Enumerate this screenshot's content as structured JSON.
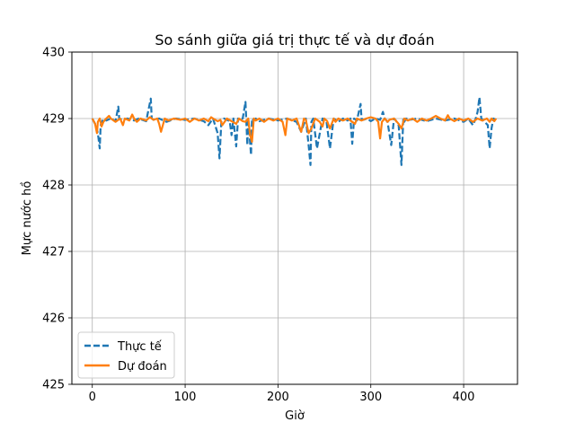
{
  "chart_data": {
    "type": "line",
    "title": "So sánh giữa giá trị thực tế và dự đoán",
    "xlabel": "Giờ",
    "ylabel": "Mực nước hồ",
    "xlim": [
      -22,
      458
    ],
    "ylim": [
      425,
      430
    ],
    "x_ticks": [
      0,
      100,
      200,
      300,
      400
    ],
    "y_ticks": [
      425,
      426,
      427,
      428,
      429,
      430
    ],
    "grid": true,
    "legend_position": "lower-left",
    "series": [
      {
        "name": "Thực tế",
        "color": "#1f77b4",
        "linestyle": "dashed",
        "x": [
          0,
          3,
          6,
          8,
          9,
          12,
          15,
          20,
          25,
          28,
          29,
          32,
          38,
          45,
          50,
          58,
          63,
          64,
          66,
          72,
          80,
          90,
          100,
          110,
          120,
          125,
          130,
          135,
          137,
          139,
          142,
          148,
          150,
          152,
          155,
          157,
          159,
          162,
          165,
          167,
          168,
          171,
          172,
          174,
          176,
          180,
          190,
          200,
          210,
          220,
          225,
          230,
          233,
          235,
          236,
          238,
          242,
          248,
          252,
          256,
          260,
          265,
          270,
          275,
          278,
          280,
          282,
          285,
          289,
          290,
          292,
          296,
          300,
          305,
          310,
          313,
          315,
          318,
          322,
          325,
          327,
          330,
          333,
          335,
          336,
          338,
          342,
          350,
          360,
          370,
          380,
          390,
          400,
          405,
          410,
          413,
          415,
          417,
          419,
          422,
          426,
          428,
          430,
          432,
          435
        ],
        "values": [
          429.0,
          428.92,
          428.78,
          428.55,
          428.9,
          429.0,
          428.97,
          429.0,
          428.96,
          429.18,
          429.0,
          428.98,
          429.0,
          428.97,
          429.0,
          428.96,
          429.3,
          429.0,
          428.98,
          429.0,
          428.95,
          429.0,
          428.98,
          429.0,
          428.96,
          428.9,
          429.0,
          428.78,
          428.4,
          428.95,
          429.0,
          428.96,
          428.75,
          429.0,
          428.58,
          429.0,
          428.97,
          429.0,
          429.25,
          428.6,
          429.0,
          428.45,
          429.0,
          428.97,
          429.0,
          428.96,
          429.0,
          428.97,
          429.0,
          428.95,
          428.8,
          429.0,
          428.6,
          428.3,
          428.95,
          429.0,
          428.55,
          429.0,
          428.98,
          428.55,
          429.0,
          428.95,
          429.0,
          428.97,
          429.0,
          428.62,
          429.0,
          428.97,
          429.22,
          429.0,
          428.98,
          429.0,
          428.96,
          429.0,
          428.98,
          429.1,
          429.0,
          428.95,
          428.6,
          429.0,
          428.97,
          428.9,
          428.3,
          429.0,
          428.95,
          429.0,
          428.98,
          429.0,
          428.96,
          429.0,
          428.97,
          429.0,
          428.95,
          429.0,
          428.9,
          429.0,
          429.1,
          429.32,
          429.0,
          428.96,
          428.9,
          428.55,
          428.85,
          429.0,
          428.98
        ]
      },
      {
        "name": "Dự đoán",
        "color": "#ff7f0e",
        "linestyle": "solid",
        "x": [
          0,
          3,
          5,
          6,
          8,
          10,
          12,
          15,
          18,
          20,
          25,
          30,
          33,
          35,
          40,
          43,
          45,
          48,
          52,
          58,
          62,
          66,
          70,
          72,
          74,
          78,
          82,
          88,
          95,
          100,
          105,
          110,
          115,
          120,
          125,
          128,
          130,
          135,
          138,
          140,
          145,
          150,
          155,
          158,
          162,
          165,
          168,
          170,
          172,
          174,
          176,
          180,
          185,
          190,
          195,
          200,
          205,
          208,
          210,
          215,
          220,
          222,
          225,
          228,
          230,
          233,
          236,
          240,
          245,
          248,
          250,
          253,
          256,
          260,
          262,
          265,
          270,
          275,
          280,
          283,
          285,
          290,
          295,
          300,
          305,
          308,
          310,
          312,
          315,
          318,
          320,
          325,
          330,
          333,
          336,
          340,
          345,
          350,
          355,
          360,
          365,
          370,
          375,
          380,
          383,
          385,
          390,
          395,
          400,
          405,
          410,
          415,
          420,
          425,
          428,
          430,
          433,
          435
        ],
        "values": [
          429.0,
          428.92,
          428.78,
          428.95,
          429.0,
          428.88,
          428.95,
          429.0,
          429.04,
          429.0,
          428.95,
          429.0,
          428.9,
          429.0,
          428.97,
          429.06,
          429.0,
          428.95,
          429.0,
          428.97,
          429.02,
          428.98,
          429.0,
          428.92,
          428.8,
          429.0,
          428.97,
          429.0,
          428.98,
          429.0,
          428.95,
          429.0,
          428.97,
          429.0,
          428.96,
          429.02,
          429.0,
          428.96,
          428.98,
          428.9,
          429.0,
          428.96,
          428.92,
          429.0,
          428.96,
          428.95,
          429.0,
          428.75,
          428.65,
          429.0,
          428.97,
          429.0,
          428.95,
          429.0,
          428.97,
          429.0,
          428.95,
          428.75,
          429.0,
          428.97,
          429.0,
          428.92,
          428.8,
          429.0,
          428.98,
          428.78,
          428.85,
          429.0,
          428.95,
          428.88,
          429.0,
          428.96,
          428.85,
          429.0,
          428.95,
          429.0,
          428.97,
          429.0,
          428.95,
          428.92,
          429.0,
          428.97,
          429.0,
          429.02,
          429.0,
          428.95,
          428.7,
          428.95,
          429.0,
          428.95,
          428.98,
          429.0,
          428.92,
          428.85,
          429.0,
          428.97,
          429.0,
          428.95,
          429.0,
          428.97,
          429.0,
          429.04,
          429.0,
          428.97,
          429.05,
          429.0,
          428.96,
          429.0,
          428.97,
          429.0,
          428.95,
          429.0,
          428.97,
          429.0,
          428.95,
          429.0,
          428.96,
          429.0
        ]
      }
    ]
  }
}
